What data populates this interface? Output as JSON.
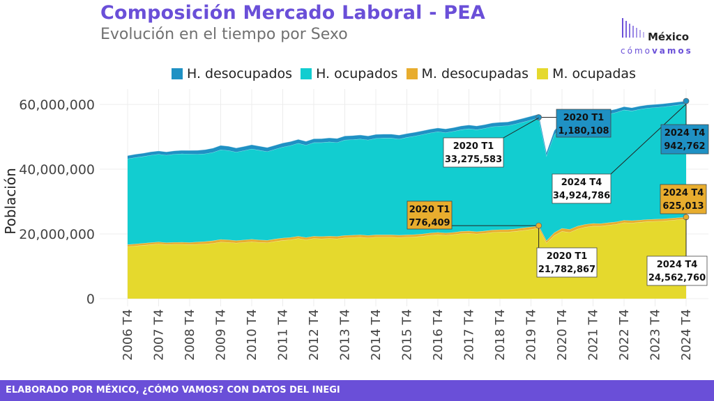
{
  "header": {
    "title": "Composición Mercado Laboral - PEA",
    "subtitle": "Evolución en el tiempo por Sexo"
  },
  "logo": {
    "main": "México",
    "sub_light": "cómo",
    "sub_bold": "vamos"
  },
  "footer": {
    "text": "ELABORADO POR MÉXICO, ¿CÓMO VAMOS? CON DATOS DEL INEGI"
  },
  "colors": {
    "h_desocupados": "#1f91c4",
    "h_ocupados": "#12cdd0",
    "m_desocupadas": "#e8ad2e",
    "m_ocupadas": "#e5d92d",
    "accent": "#6a4fd8"
  },
  "chart_data": {
    "type": "area",
    "stacked": true,
    "title": "Composición Mercado Laboral - PEA",
    "subtitle": "Evolución en el tiempo por Sexo",
    "ylabel": "Población",
    "xlabel": "",
    "ylim": [
      0,
      64000000
    ],
    "yticks": [
      0,
      20000000,
      40000000,
      60000000
    ],
    "ytick_labels": [
      "0",
      "20,000,000",
      "40,000,000",
      "60,000,000"
    ],
    "xtick_labels": [
      "2006 T4",
      "2007 T4",
      "2008 T4",
      "2009 T4",
      "2010 T4",
      "2011 T4",
      "2012 T4",
      "2013 T4",
      "2014 T4",
      "2015 T4",
      "2016 T4",
      "2017 T4",
      "2018 T4",
      "2019 T4",
      "2020 T4",
      "2021 T4",
      "2022 T4",
      "2023 T4",
      "2024 T4"
    ],
    "grid": true,
    "legend_position": "top",
    "x": [
      "2006 T4",
      "2007 T1",
      "2007 T2",
      "2007 T3",
      "2007 T4",
      "2008 T1",
      "2008 T2",
      "2008 T3",
      "2008 T4",
      "2009 T1",
      "2009 T2",
      "2009 T3",
      "2009 T4",
      "2010 T1",
      "2010 T2",
      "2010 T3",
      "2010 T4",
      "2011 T1",
      "2011 T2",
      "2011 T3",
      "2011 T4",
      "2012 T1",
      "2012 T2",
      "2012 T3",
      "2012 T4",
      "2013 T1",
      "2013 T2",
      "2013 T3",
      "2013 T4",
      "2014 T1",
      "2014 T2",
      "2014 T3",
      "2014 T4",
      "2015 T1",
      "2015 T2",
      "2015 T3",
      "2015 T4",
      "2016 T1",
      "2016 T2",
      "2016 T3",
      "2016 T4",
      "2017 T1",
      "2017 T2",
      "2017 T3",
      "2017 T4",
      "2018 T1",
      "2018 T2",
      "2018 T3",
      "2018 T4",
      "2019 T1",
      "2019 T2",
      "2019 T3",
      "2019 T4",
      "2020 T1",
      "2020 T2",
      "2020 T3",
      "2020 T4",
      "2021 T1",
      "2021 T2",
      "2021 T3",
      "2021 T4",
      "2022 T1",
      "2022 T2",
      "2022 T3",
      "2022 T4",
      "2023 T1",
      "2023 T2",
      "2023 T3",
      "2023 T4",
      "2024 T1",
      "2024 T2",
      "2024 T3",
      "2024 T4"
    ],
    "series": [
      {
        "name": "M. ocupadas",
        "color": "#e5d92d",
        "values": [
          16100000,
          16300000,
          16500000,
          16700000,
          16900000,
          16700000,
          16800000,
          16800000,
          16700000,
          16800000,
          16900000,
          17100000,
          17500000,
          17400000,
          17200000,
          17400000,
          17600000,
          17400000,
          17300000,
          17700000,
          18000000,
          18200000,
          18600000,
          18200000,
          18600000,
          18500000,
          18600000,
          18500000,
          18800000,
          18900000,
          19000000,
          18800000,
          19000000,
          19000000,
          19000000,
          18900000,
          19000000,
          19100000,
          19300000,
          19600000,
          19800000,
          19600000,
          19800000,
          20100000,
          20200000,
          20000000,
          20200000,
          20500000,
          20600000,
          20600000,
          20800000,
          21100000,
          21400000,
          21782867,
          17200000,
          19500000,
          20800000,
          20500000,
          21500000,
          22100000,
          22400000,
          22400000,
          22700000,
          23000000,
          23500000,
          23400000,
          23600000,
          23800000,
          23900000,
          24000000,
          24200000,
          24400000,
          24562760
        ]
      },
      {
        "name": "M. desocupadas",
        "color": "#e8ad2e",
        "values": [
          600000,
          610000,
          620000,
          630000,
          620000,
          620000,
          630000,
          650000,
          680000,
          720000,
          760000,
          790000,
          800000,
          780000,
          760000,
          760000,
          760000,
          750000,
          740000,
          740000,
          740000,
          720000,
          710000,
          710000,
          710000,
          720000,
          730000,
          740000,
          740000,
          740000,
          740000,
          740000,
          730000,
          720000,
          720000,
          720000,
          720000,
          710000,
          700000,
          700000,
          700000,
          700000,
          700000,
          700000,
          700000,
          700000,
          700000,
          710000,
          720000,
          740000,
          760000,
          770000,
          780000,
          776409,
          700000,
          900000,
          950000,
          930000,
          900000,
          870000,
          850000,
          800000,
          780000,
          750000,
          720000,
          700000,
          690000,
          680000,
          660000,
          650000,
          640000,
          630000,
          625013
        ]
      },
      {
        "name": "H. ocupados",
        "color": "#12cdd0",
        "values": [
          26500000,
          26700000,
          26800000,
          27000000,
          27100000,
          27000000,
          27200000,
          27300000,
          27300000,
          27100000,
          27100000,
          27300000,
          27700000,
          27600000,
          27300000,
          27600000,
          27900000,
          27700000,
          27400000,
          27700000,
          28100000,
          28400000,
          28700000,
          28500000,
          28900000,
          29000000,
          29100000,
          29000000,
          29500000,
          29500000,
          29600000,
          29500000,
          29800000,
          29900000,
          29900000,
          29700000,
          30100000,
          30400000,
          30700000,
          30900000,
          31100000,
          31000000,
          31200000,
          31400000,
          31600000,
          31500000,
          31700000,
          31900000,
          32000000,
          32100000,
          32400000,
          32700000,
          33000000,
          33275583,
          26200000,
          30200000,
          31500000,
          31200000,
          32300000,
          32900000,
          33300000,
          33200000,
          33500000,
          33800000,
          34100000,
          33900000,
          34200000,
          34400000,
          34500000,
          34600000,
          34700000,
          34800000,
          34924786
        ]
      },
      {
        "name": "H. desocupados",
        "color": "#1f91c4",
        "values": [
          1000000,
          1010000,
          1030000,
          1050000,
          1040000,
          1040000,
          1050000,
          1080000,
          1120000,
          1200000,
          1280000,
          1330000,
          1350000,
          1320000,
          1290000,
          1280000,
          1280000,
          1270000,
          1260000,
          1250000,
          1240000,
          1230000,
          1220000,
          1220000,
          1210000,
          1220000,
          1240000,
          1250000,
          1250000,
          1240000,
          1240000,
          1240000,
          1230000,
          1220000,
          1220000,
          1210000,
          1200000,
          1190000,
          1180000,
          1170000,
          1160000,
          1160000,
          1160000,
          1160000,
          1160000,
          1160000,
          1160000,
          1170000,
          1170000,
          1170000,
          1180000,
          1180000,
          1180000,
          1180108,
          1100000,
          1350000,
          1400000,
          1380000,
          1320000,
          1250000,
          1200000,
          1150000,
          1100000,
          1050000,
          1020000,
          1000000,
          990000,
          980000,
          970000,
          960000,
          955000,
          950000,
          942762
        ]
      }
    ],
    "annotations": [
      {
        "label": "2020 T1",
        "value": "1,180,108",
        "series": "H. desocupados",
        "x": "2020 T1",
        "y": 56014967,
        "box_color": "#1f91c4"
      },
      {
        "label": "2024 T4",
        "value": "942,762",
        "series": "H. desocupados",
        "x": "2024 T4",
        "y": 61055321,
        "box_color": "#1f91c4"
      },
      {
        "label": "2020 T1",
        "value": "33,275,583",
        "series": "H. ocupados",
        "x": "2020 T1",
        "y": 55834859,
        "box_color": "#ffffff"
      },
      {
        "label": "2024 T4",
        "value": "34,924,786",
        "series": "H. ocupados",
        "x": "2024 T4",
        "y": 60112559,
        "box_color": "#ffffff"
      },
      {
        "label": "2020 T1",
        "value": "776,409",
        "series": "M. desocupadas",
        "x": "2020 T1",
        "y": 22559276,
        "box_color": "#e8ad2e"
      },
      {
        "label": "2024 T4",
        "value": "625,013",
        "series": "M. desocupadas",
        "x": "2024 T4",
        "y": 25187773,
        "box_color": "#e8ad2e"
      },
      {
        "label": "2020 T1",
        "value": "21,782,867",
        "series": "M. ocupadas",
        "x": "2020 T1",
        "y": 21782867,
        "box_color": "#ffffff"
      },
      {
        "label": "2024 T4",
        "value": "24,562,760",
        "series": "M. ocupadas",
        "x": "2024 T4",
        "y": 24562760,
        "box_color": "#ffffff"
      }
    ]
  }
}
